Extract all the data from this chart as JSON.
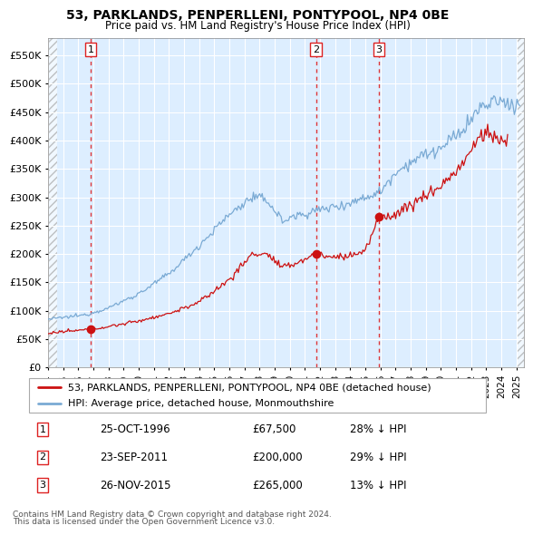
{
  "title1": "53, PARKLANDS, PENPERLLENI, PONTYPOOL, NP4 0BE",
  "title2": "Price paid vs. HM Land Registry's House Price Index (HPI)",
  "legend_label1": "53, PARKLANDS, PENPERLLENI, PONTYPOOL, NP4 0BE (detached house)",
  "legend_label2": "HPI: Average price, detached house, Monmouthshire",
  "footer1": "Contains HM Land Registry data © Crown copyright and database right 2024.",
  "footer2": "This data is licensed under the Open Government Licence v3.0.",
  "sale_dates_year": [
    1996.82,
    2011.73,
    2015.9
  ],
  "sale_prices": [
    67500,
    200000,
    265000
  ],
  "sale_labels": [
    "1",
    "2",
    "3"
  ],
  "sale_info": [
    [
      "1",
      "25-OCT-1996",
      "£67,500",
      "28% ↓ HPI"
    ],
    [
      "2",
      "23-SEP-2011",
      "£200,000",
      "29% ↓ HPI"
    ],
    [
      "3",
      "26-NOV-2015",
      "£265,000",
      "13% ↓ HPI"
    ]
  ],
  "hpi_color": "#7aaad4",
  "price_color": "#cc1111",
  "vline_color": "#dd2222",
  "plot_bg_color": "#ddeeff",
  "hatch_color": "#c0c8d8",
  "ylim": [
    0,
    580000
  ],
  "ytick_vals": [
    0,
    50000,
    100000,
    150000,
    200000,
    250000,
    300000,
    350000,
    400000,
    450000,
    500000,
    550000
  ],
  "ytick_labels": [
    "£0",
    "£50K",
    "£100K",
    "£150K",
    "£200K",
    "£250K",
    "£300K",
    "£350K",
    "£400K",
    "£450K",
    "£500K",
    "£550K"
  ],
  "xmin": 1994.0,
  "xmax": 2025.5,
  "xtick_years": [
    1994,
    1995,
    1996,
    1997,
    1998,
    1999,
    2000,
    2001,
    2002,
    2003,
    2004,
    2005,
    2006,
    2007,
    2008,
    2009,
    2010,
    2011,
    2012,
    2013,
    2014,
    2015,
    2016,
    2017,
    2018,
    2019,
    2020,
    2021,
    2022,
    2023,
    2024,
    2025
  ]
}
